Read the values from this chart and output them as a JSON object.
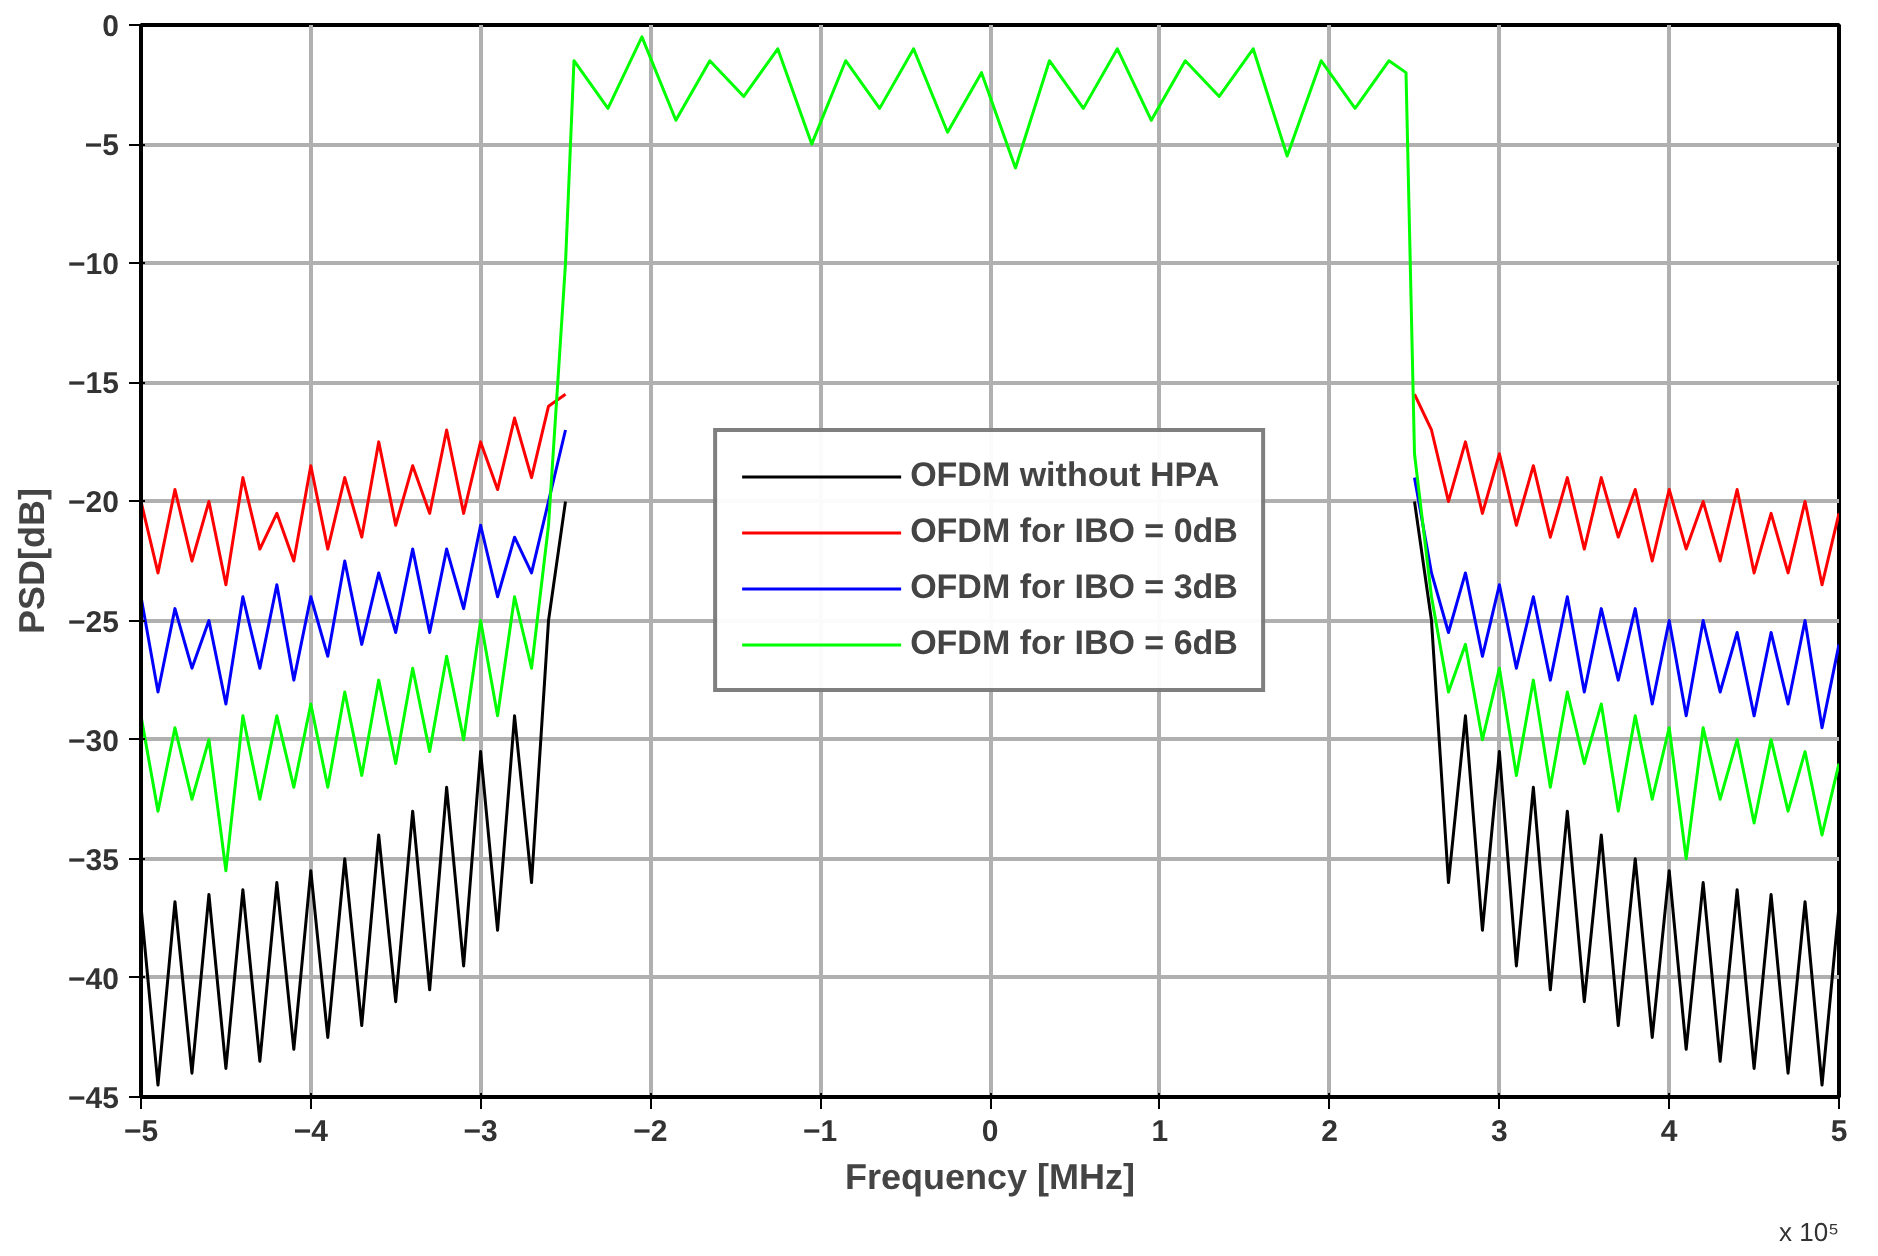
{
  "chart_data": {
    "type": "line",
    "xlabel": "Frequency [MHz]",
    "ylabel": "PSD[dB]",
    "xlim": [
      -5,
      5
    ],
    "ylim": [
      -45,
      0
    ],
    "xticks": [
      -5,
      -4,
      -3,
      -2,
      -1,
      0,
      1,
      2,
      3,
      4,
      5
    ],
    "yticks": [
      -45,
      -40,
      -35,
      -30,
      -25,
      -20,
      -15,
      -10,
      -5,
      0
    ],
    "grid": true,
    "legend": "center",
    "line_style": "solid",
    "marker": "none",
    "annotations": [
      "x 10⁵"
    ],
    "series": [
      {
        "name": "OFDM without HPA",
        "color": "#000000",
        "x": [
          -5,
          -4.9,
          -4.8,
          -4.7,
          -4.6,
          -4.5,
          -4.4,
          -4.3,
          -4.2,
          -4.1,
          -4,
          -3.9,
          -3.8,
          -3.7,
          -3.6,
          -3.5,
          -3.4,
          -3.3,
          -3.2,
          -3.1,
          -3,
          -2.9,
          -2.8,
          -2.7,
          -2.6,
          -2.5,
          0,
          2.5,
          2.6,
          2.7,
          2.8,
          2.9,
          3,
          3.1,
          3.2,
          3.3,
          3.4,
          3.5,
          3.6,
          3.7,
          3.8,
          3.9,
          4,
          4.1,
          4.2,
          4.3,
          4.4,
          4.5,
          4.6,
          4.7,
          4.8,
          4.9,
          5
        ],
        "values": [
          -37,
          -44.5,
          -36.8,
          -44,
          -36.5,
          -43.8,
          -36.3,
          -43.5,
          -36,
          -43,
          -35.5,
          -42.5,
          -35,
          -42,
          -34,
          -41,
          -33,
          -40.5,
          -32,
          -39.5,
          -30.5,
          -38,
          -29,
          -36,
          -25,
          -20,
          null,
          -20,
          -25,
          -36,
          -29,
          -38,
          -30.5,
          -39.5,
          -32,
          -40.5,
          -33,
          -41,
          -34,
          -42,
          -35,
          -42.5,
          -35.5,
          -43,
          -36,
          -43.5,
          -36.3,
          -43.8,
          -36.5,
          -44,
          -36.8,
          -44.5,
          -37
        ]
      },
      {
        "name": "OFDM for IBO = 0dB",
        "color": "#ff0000",
        "x": [
          -5,
          -4.9,
          -4.8,
          -4.7,
          -4.6,
          -4.5,
          -4.4,
          -4.3,
          -4.2,
          -4.1,
          -4,
          -3.9,
          -3.8,
          -3.7,
          -3.6,
          -3.5,
          -3.4,
          -3.3,
          -3.2,
          -3.1,
          -3,
          -2.9,
          -2.8,
          -2.7,
          -2.6,
          -2.5,
          0,
          2.5,
          2.6,
          2.7,
          2.8,
          2.9,
          3,
          3.1,
          3.2,
          3.3,
          3.4,
          3.5,
          3.6,
          3.7,
          3.8,
          3.9,
          4,
          4.1,
          4.2,
          4.3,
          4.4,
          4.5,
          4.6,
          4.7,
          4.8,
          4.9,
          5
        ],
        "values": [
          -20,
          -23,
          -19.5,
          -22.5,
          -20,
          -23.5,
          -19,
          -22,
          -20.5,
          -22.5,
          -18.5,
          -22,
          -19,
          -21.5,
          -17.5,
          -21,
          -18.5,
          -20.5,
          -17,
          -20.5,
          -17.5,
          -19.5,
          -16.5,
          -19,
          -16,
          -15.5,
          null,
          -15.5,
          -17,
          -20,
          -17.5,
          -20.5,
          -18,
          -21,
          -18.5,
          -21.5,
          -19,
          -22,
          -19,
          -21.5,
          -19.5,
          -22.5,
          -19.5,
          -22,
          -20,
          -22.5,
          -19.5,
          -23,
          -20.5,
          -23,
          -20,
          -23.5,
          -20.5
        ]
      },
      {
        "name": "OFDM for IBO = 3dB",
        "color": "#0000ff",
        "x": [
          -5,
          -4.9,
          -4.8,
          -4.7,
          -4.6,
          -4.5,
          -4.4,
          -4.3,
          -4.2,
          -4.1,
          -4,
          -3.9,
          -3.8,
          -3.7,
          -3.6,
          -3.5,
          -3.4,
          -3.3,
          -3.2,
          -3.1,
          -3,
          -2.9,
          -2.8,
          -2.7,
          -2.6,
          -2.5,
          0,
          2.5,
          2.6,
          2.7,
          2.8,
          2.9,
          3,
          3.1,
          3.2,
          3.3,
          3.4,
          3.5,
          3.6,
          3.7,
          3.8,
          3.9,
          4,
          4.1,
          4.2,
          4.3,
          4.4,
          4.5,
          4.6,
          4.7,
          4.8,
          4.9,
          5
        ],
        "values": [
          -24,
          -28,
          -24.5,
          -27,
          -25,
          -28.5,
          -24,
          -27,
          -23.5,
          -27.5,
          -24,
          -26.5,
          -22.5,
          -26,
          -23,
          -25.5,
          -22,
          -25.5,
          -22,
          -24.5,
          -21,
          -24,
          -21.5,
          -23,
          -20,
          -17,
          null,
          -19,
          -23,
          -25.5,
          -23,
          -26.5,
          -23.5,
          -27,
          -24,
          -27.5,
          -24,
          -28,
          -24.5,
          -27.5,
          -24.5,
          -28.5,
          -25,
          -29,
          -25,
          -28,
          -25.5,
          -29,
          -25.5,
          -28.5,
          -25,
          -29.5,
          -26
        ]
      },
      {
        "name": "OFDM for IBO = 6dB",
        "color": "#00ff00",
        "x": [
          -5,
          -4.9,
          -4.8,
          -4.7,
          -4.6,
          -4.5,
          -4.4,
          -4.3,
          -4.2,
          -4.1,
          -4,
          -3.9,
          -3.8,
          -3.7,
          -3.6,
          -3.5,
          -3.4,
          -3.3,
          -3.2,
          -3.1,
          -3,
          -2.9,
          -2.8,
          -2.7,
          -2.6,
          -2.5,
          -2.45,
          -2.25,
          -2.05,
          -1.85,
          -1.65,
          -1.45,
          -1.25,
          -1.05,
          -0.85,
          -0.65,
          -0.45,
          -0.25,
          -0.05,
          0.15,
          0.35,
          0.55,
          0.75,
          0.95,
          1.15,
          1.35,
          1.55,
          1.75,
          1.95,
          2.15,
          2.35,
          2.45,
          2.5,
          2.6,
          2.7,
          2.8,
          2.9,
          3,
          3.1,
          3.2,
          3.3,
          3.4,
          3.5,
          3.6,
          3.7,
          3.8,
          3.9,
          4,
          4.1,
          4.2,
          4.3,
          4.4,
          4.5,
          4.6,
          4.7,
          4.8,
          4.9,
          5
        ],
        "values": [
          -29,
          -33,
          -29.5,
          -32.5,
          -30,
          -35.5,
          -29,
          -32.5,
          -29,
          -32,
          -28.5,
          -32,
          -28,
          -31.5,
          -27.5,
          -31,
          -27,
          -30.5,
          -26.5,
          -30,
          -25,
          -29,
          -24,
          -27,
          -21,
          -10,
          -1.5,
          -3.5,
          -0.5,
          -4,
          -1.5,
          -3,
          -1,
          -5,
          -1.5,
          -3.5,
          -1,
          -4.5,
          -2,
          -6,
          -1.5,
          -3.5,
          -1,
          -4,
          -1.5,
          -3,
          -1,
          -5.5,
          -1.5,
          -3.5,
          -1.5,
          -2,
          -18,
          -24,
          -28,
          -26,
          -30,
          -27,
          -31.5,
          -27.5,
          -32,
          -28,
          -31,
          -28.5,
          -33,
          -29,
          -32.5,
          -29.5,
          -35,
          -29.5,
          -32.5,
          -30,
          -33.5,
          -30,
          -33,
          -30.5,
          -34,
          -31
        ]
      }
    ]
  }
}
